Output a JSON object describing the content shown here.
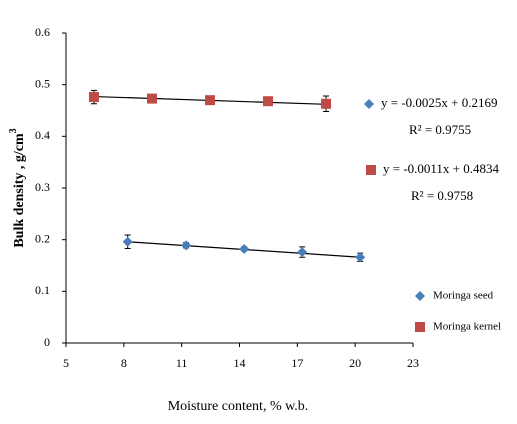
{
  "chart_data": {
    "type": "scatter",
    "x_label": "Moisture content, % w.b.",
    "y_label": "Bulk density , g/cm",
    "y_label_sup": "3",
    "xlim": [
      5,
      23
    ],
    "xticks": [
      5,
      8,
      11,
      14,
      17,
      20,
      23
    ],
    "ylim": [
      0,
      0.6
    ],
    "yticks": [
      {
        "value": 0,
        "label": "0"
      },
      0.1,
      0.2,
      0.3,
      0.4,
      0.5,
      0.6
    ],
    "grid": false,
    "legend_position": "lower right",
    "series": [
      {
        "name": "Moringa seed",
        "color": "#4a7ebb",
        "marker": "diamond",
        "x": [
          8.2,
          11.23,
          14.24,
          17.25,
          20.26
        ],
        "values": [
          0.196,
          0.189,
          0.182,
          0.176,
          0.166
        ],
        "errors": [
          0.013,
          0.005,
          0.004,
          0.01,
          0.008
        ],
        "trend_x": [
          8.2,
          20.26
        ],
        "trend_values": [
          0.196,
          0.166
        ],
        "equation": "y = -0.0025x + 0.2169",
        "r2": "R² = 0.9755"
      },
      {
        "name": "Moringa kernel",
        "color": "#be4b48",
        "marker": "square",
        "x": [
          6.45,
          9.46,
          12.47,
          15.48,
          18.49
        ],
        "values": [
          0.476,
          0.473,
          0.47,
          0.468,
          0.463
        ],
        "errors": [
          0.013,
          0.004,
          0.004,
          0.004,
          0.015
        ],
        "trend_x": [
          6.45,
          18.49
        ],
        "trend_values": [
          0.477,
          0.462
        ],
        "equation": "y = -0.0011x + 0.4834",
        "r2": "R² = 0.9758"
      }
    ]
  }
}
